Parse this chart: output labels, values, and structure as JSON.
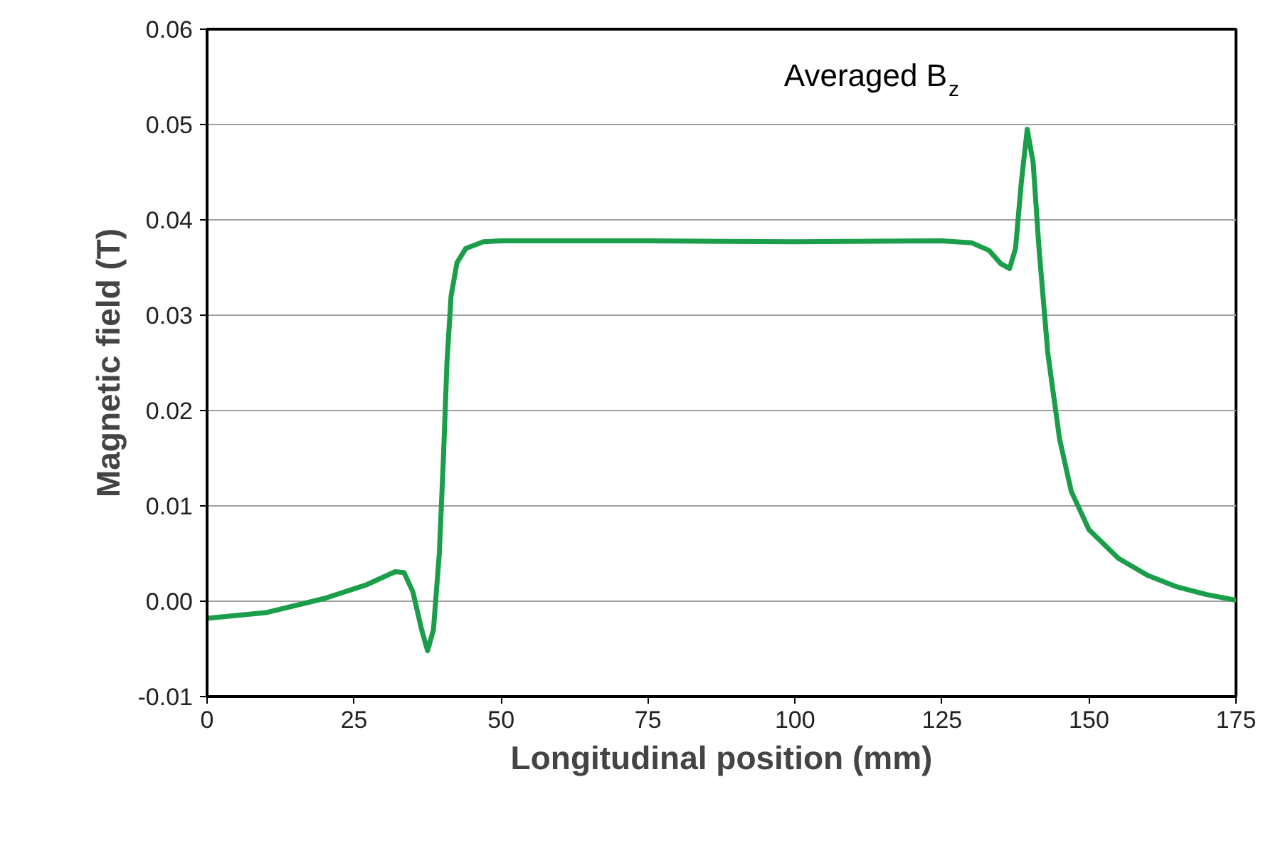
{
  "chart_data": {
    "type": "line",
    "title": "Averaged B$_{z}$",
    "xlabel": "Longitudinal position (mm)",
    "ylabel": "Magnetic field (T)",
    "x": [
      0,
      10,
      20,
      27,
      32,
      33.5,
      35,
      36.5,
      37.5,
      38.5,
      39.5,
      40.2,
      40.8,
      41.5,
      42.5,
      44,
      47,
      50,
      75,
      100,
      125,
      130,
      133,
      135,
      136.5,
      137.5,
      138.5,
      139.5,
      140.5,
      141.5,
      143,
      145,
      147,
      150,
      155,
      160,
      165,
      170,
      175
    ],
    "series": [
      {
        "color": "#1a9e4a",
        "values": [
          -0.0018,
          -0.0012,
          0.0003,
          0.0017,
          0.0031,
          0.003,
          0.001,
          -0.003,
          -0.0052,
          -0.003,
          0.005,
          0.015,
          0.025,
          0.032,
          0.0355,
          0.037,
          0.0377,
          0.0378,
          0.0378,
          0.0377,
          0.0378,
          0.0376,
          0.0368,
          0.0354,
          0.0349,
          0.037,
          0.044,
          0.0495,
          0.046,
          0.037,
          0.026,
          0.017,
          0.0115,
          0.0075,
          0.0045,
          0.0027,
          0.0015,
          0.0007,
          0.0001
        ]
      }
    ],
    "xlim": [
      0,
      175
    ],
    "xticks": [
      0,
      25,
      50,
      75,
      100,
      125,
      150,
      175
    ],
    "ylim": [
      -0.01,
      0.06
    ],
    "yticks": [
      -0.01,
      {
        "value": 0,
        "label": "0.00"
      },
      0.01,
      0.02,
      0.03,
      0.04,
      0.05,
      0.06
    ],
    "grid": "y",
    "marker": "none",
    "line_style": "solid"
  }
}
